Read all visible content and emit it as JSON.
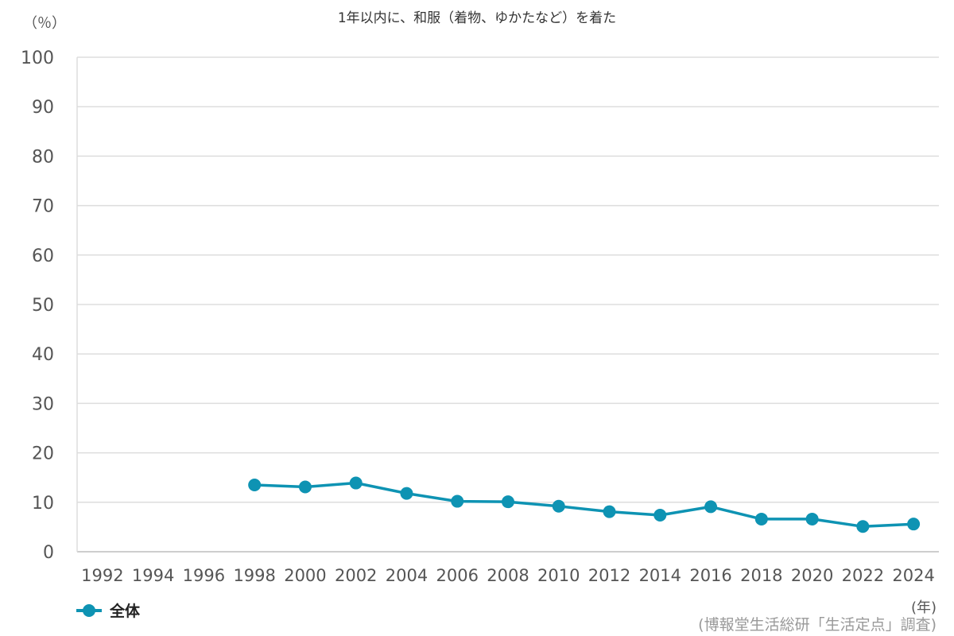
{
  "chart_data": {
    "type": "line",
    "title": "1年以内に、和服（着物、ゆかたなど）を着た",
    "y_unit_label": "（％）",
    "x_unit_label": "(年)",
    "source": "(博報堂生活総研「生活定点」調査)",
    "categories": [
      "1992",
      "1994",
      "1996",
      "1998",
      "2000",
      "2002",
      "2004",
      "2006",
      "2008",
      "2010",
      "2012",
      "2014",
      "2016",
      "2018",
      "2020",
      "2022",
      "2024"
    ],
    "yticks": [
      0,
      10,
      20,
      30,
      40,
      50,
      60,
      70,
      80,
      90,
      100
    ],
    "ylim": [
      0,
      100
    ],
    "grid": true,
    "legend_position": "bottom-left",
    "series": [
      {
        "name": "全体",
        "color": "#0e93b3",
        "values": [
          null,
          null,
          null,
          13.5,
          13.1,
          13.9,
          11.8,
          10.2,
          10.1,
          9.2,
          8.1,
          7.4,
          9.1,
          6.6,
          6.6,
          5.1,
          5.6
        ]
      }
    ]
  }
}
